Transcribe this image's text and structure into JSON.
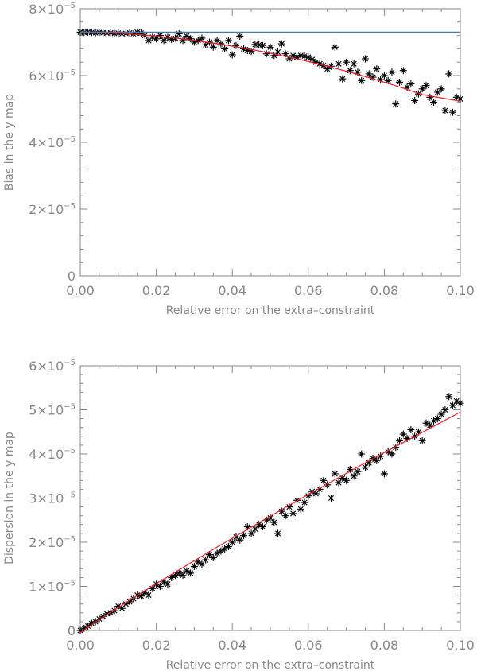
{
  "chart_data": [
    {
      "type": "scatter",
      "xlabel": "Relative error on the extra–constraint",
      "ylabel": "Bias in the y map",
      "xlim": [
        0,
        0.1
      ],
      "ylim": [
        0,
        8e-05
      ],
      "grid": false,
      "x_ticks": [
        {
          "value": 0.0,
          "label": "0.00"
        },
        {
          "value": 0.02,
          "label": "0.02"
        },
        {
          "value": 0.04,
          "label": "0.04"
        },
        {
          "value": 0.06,
          "label": "0.06"
        },
        {
          "value": 0.08,
          "label": "0.08"
        },
        {
          "value": 0.1,
          "label": "0.10"
        }
      ],
      "y_ticks": [
        {
          "value": 0,
          "mant": "0",
          "exp": ""
        },
        {
          "value": 2e-05,
          "mant": "2×10",
          "exp": "−5"
        },
        {
          "value": 4e-05,
          "mant": "4×10",
          "exp": "−5"
        },
        {
          "value": 6e-05,
          "mant": "6×10",
          "exp": "−5"
        },
        {
          "value": 8e-05,
          "mant": "8×10",
          "exp": "−5"
        }
      ],
      "series": [
        {
          "marker": "asterisk",
          "color": "#000000",
          "x": [
            0.0,
            0.001,
            0.002,
            0.003,
            0.004,
            0.005,
            0.006,
            0.007,
            0.008,
            0.009,
            0.01,
            0.011,
            0.012,
            0.013,
            0.014,
            0.015,
            0.016,
            0.017,
            0.018,
            0.019,
            0.02,
            0.021,
            0.022,
            0.023,
            0.024,
            0.025,
            0.026,
            0.027,
            0.028,
            0.029,
            0.03,
            0.031,
            0.032,
            0.033,
            0.034,
            0.035,
            0.036,
            0.037,
            0.038,
            0.039,
            0.04,
            0.041,
            0.042,
            0.043,
            0.044,
            0.045,
            0.046,
            0.047,
            0.048,
            0.049,
            0.05,
            0.051,
            0.052,
            0.053,
            0.054,
            0.055,
            0.056,
            0.057,
            0.058,
            0.059,
            0.06,
            0.061,
            0.062,
            0.063,
            0.064,
            0.065,
            0.066,
            0.067,
            0.068,
            0.069,
            0.07,
            0.071,
            0.072,
            0.073,
            0.074,
            0.075,
            0.076,
            0.077,
            0.078,
            0.079,
            0.08,
            0.081,
            0.082,
            0.083,
            0.084,
            0.085,
            0.086,
            0.087,
            0.088,
            0.089,
            0.09,
            0.091,
            0.092,
            0.093,
            0.094,
            0.095,
            0.096,
            0.097,
            0.098,
            0.099,
            0.1
          ],
          "y": [
            7.3e-05,
            7.29e-05,
            7.3e-05,
            7.29e-05,
            7.28e-05,
            7.29e-05,
            7.28e-05,
            7.27e-05,
            7.28e-05,
            7.26e-05,
            7.27e-05,
            7.25e-05,
            7.26e-05,
            7.28e-05,
            7.25e-05,
            7.3e-05,
            7.27e-05,
            7.2e-05,
            7.05e-05,
            7.15e-05,
            7.1e-05,
            7.2e-05,
            7.05e-05,
            7.15e-05,
            7.08e-05,
            7.12e-05,
            7.25e-05,
            7.05e-05,
            7.18e-05,
            7.1e-05,
            7e-05,
            7.05e-05,
            7.12e-05,
            6.92e-05,
            7e-05,
            6.85e-05,
            7.05e-05,
            6.95e-05,
            6.8e-05,
            7.05e-05,
            6.62e-05,
            6.9e-05,
            7.18e-05,
            6.8e-05,
            6.75e-05,
            6.72e-05,
            6.93e-05,
            6.92e-05,
            6.9e-05,
            6.65e-05,
            6.85e-05,
            6.6e-05,
            6.7e-05,
            6.95e-05,
            6.65e-05,
            6.5e-05,
            6.6e-05,
            6.55e-05,
            6.6e-05,
            6.58e-05,
            6.55e-05,
            6.48e-05,
            6.4e-05,
            6.35e-05,
            6.3e-05,
            6.2e-05,
            6.28e-05,
            6.85e-05,
            6.35e-05,
            5.9e-05,
            6.4e-05,
            6.15e-05,
            6.35e-05,
            6.1e-05,
            5.85e-05,
            6.5e-05,
            6.05e-05,
            5.95e-05,
            6.2e-05,
            5.88e-05,
            6e-05,
            5.85e-05,
            6.1e-05,
            5.15e-05,
            5.8e-05,
            6.15e-05,
            5.65e-05,
            5.75e-05,
            5.25e-05,
            5.45e-05,
            5.6e-05,
            5.7e-05,
            5.35e-05,
            5.2e-05,
            5.5e-05,
            5.6e-05,
            4.95e-05,
            6.05e-05,
            4.9e-05,
            5.35e-05,
            5.3e-05
          ]
        },
        {
          "marker": "line",
          "color": "#e8202a",
          "x": [
            0.0,
            0.005,
            0.01,
            0.015,
            0.02,
            0.025,
            0.03,
            0.035,
            0.04,
            0.045,
            0.05,
            0.055,
            0.06,
            0.065,
            0.07,
            0.075,
            0.08,
            0.085,
            0.09,
            0.095,
            0.1
          ],
          "y": [
            7.3e-05,
            7.29e-05,
            7.27e-05,
            7.23e-05,
            7.18e-05,
            7.12e-05,
            7.05e-05,
            6.97e-05,
            6.88e-05,
            6.78e-05,
            6.67e-05,
            6.55e-05,
            6.42e-05,
            6.28e-05,
            6.13e-05,
            5.97e-05,
            5.8e-05,
            5.62e-05,
            5.43e-05,
            5.33e-05,
            5.23e-05
          ]
        },
        {
          "marker": "hline",
          "color": "#3a7dbf",
          "x": [
            0,
            0.1
          ],
          "y": [
            7.3e-05,
            7.3e-05
          ]
        }
      ]
    },
    {
      "type": "scatter",
      "xlabel": "Relative error on the extra–constraint",
      "ylabel": "Dispersion in the y map",
      "xlim": [
        0,
        0.1
      ],
      "ylim": [
        0,
        6e-05
      ],
      "grid": false,
      "x_ticks": [
        {
          "value": 0.0,
          "label": "0.00"
        },
        {
          "value": 0.02,
          "label": "0.02"
        },
        {
          "value": 0.04,
          "label": "0.04"
        },
        {
          "value": 0.06,
          "label": "0.06"
        },
        {
          "value": 0.08,
          "label": "0.08"
        },
        {
          "value": 0.1,
          "label": "0.10"
        }
      ],
      "y_ticks": [
        {
          "value": 0,
          "mant": "0",
          "exp": ""
        },
        {
          "value": 1e-05,
          "mant": "1×10",
          "exp": "−5"
        },
        {
          "value": 2e-05,
          "mant": "2×10",
          "exp": "−5"
        },
        {
          "value": 3e-05,
          "mant": "3×10",
          "exp": "−5"
        },
        {
          "value": 4e-05,
          "mant": "4×10",
          "exp": "−5"
        },
        {
          "value": 5e-05,
          "mant": "5×10",
          "exp": "−5"
        },
        {
          "value": 6e-05,
          "mant": "6×10",
          "exp": "−5"
        }
      ],
      "series": [
        {
          "marker": "asterisk",
          "color": "#000000",
          "x": [
            0.0,
            0.001,
            0.002,
            0.003,
            0.004,
            0.005,
            0.006,
            0.007,
            0.008,
            0.009,
            0.01,
            0.011,
            0.012,
            0.013,
            0.014,
            0.015,
            0.016,
            0.017,
            0.018,
            0.019,
            0.02,
            0.021,
            0.022,
            0.023,
            0.024,
            0.025,
            0.026,
            0.027,
            0.028,
            0.029,
            0.03,
            0.031,
            0.032,
            0.033,
            0.034,
            0.035,
            0.036,
            0.037,
            0.038,
            0.039,
            0.04,
            0.041,
            0.042,
            0.043,
            0.044,
            0.045,
            0.046,
            0.047,
            0.048,
            0.049,
            0.05,
            0.051,
            0.052,
            0.053,
            0.054,
            0.055,
            0.056,
            0.057,
            0.058,
            0.059,
            0.06,
            0.061,
            0.062,
            0.063,
            0.064,
            0.065,
            0.066,
            0.067,
            0.068,
            0.069,
            0.07,
            0.071,
            0.072,
            0.073,
            0.074,
            0.075,
            0.076,
            0.077,
            0.078,
            0.079,
            0.08,
            0.081,
            0.082,
            0.083,
            0.084,
            0.085,
            0.086,
            0.087,
            0.088,
            0.089,
            0.09,
            0.091,
            0.092,
            0.093,
            0.094,
            0.095,
            0.096,
            0.097,
            0.098,
            0.099,
            0.1
          ],
          "y": [
            0.0,
            5e-07,
            1e-06,
            1.6e-06,
            2e-06,
            2.6e-06,
            3.2e-06,
            3.8e-06,
            4e-06,
            4.5e-06,
            5.5e-06,
            5e-06,
            6e-06,
            6.5e-06,
            7.2e-06,
            8e-06,
            7.8e-06,
            8.5e-06,
            8e-06,
            9.5e-06,
            1.05e-05,
            1e-05,
            1.1e-05,
            1.05e-05,
            1.2e-05,
            1.25e-05,
            1.3e-05,
            1.25e-05,
            1.35e-05,
            1.3e-05,
            1.45e-05,
            1.55e-05,
            1.5e-05,
            1.6e-05,
            1.72e-05,
            1.65e-05,
            1.75e-05,
            1.8e-05,
            1.85e-05,
            1.9e-05,
            2e-05,
            2.12e-05,
            2.05e-05,
            2.15e-05,
            2.35e-05,
            2.2e-05,
            2.3e-05,
            2.4e-05,
            2.35e-05,
            2.5e-05,
            2.55e-05,
            2.45e-05,
            2.2e-05,
            2.7e-05,
            2.6e-05,
            2.8e-05,
            2.65e-05,
            2.95e-05,
            2.75e-05,
            2.9e-05,
            3.05e-05,
            3.15e-05,
            3.1e-05,
            3.2e-05,
            3.4e-05,
            3.3e-05,
            3e-05,
            3.55e-05,
            3.35e-05,
            3.45e-05,
            3.4e-05,
            3.65e-05,
            3.5e-05,
            3.6e-05,
            4e-05,
            3.7e-05,
            3.8e-05,
            3.9e-05,
            3.85e-05,
            3.95e-05,
            3.55e-05,
            4.05e-05,
            4e-05,
            4.15e-05,
            4.3e-05,
            4.45e-05,
            4.35e-05,
            4.55e-05,
            4.4e-05,
            4.5e-05,
            4.3e-05,
            4.7e-05,
            4.65e-05,
            4.75e-05,
            4.8e-05,
            4.9e-05,
            5e-05,
            5.3e-05,
            5.1e-05,
            5.2e-05,
            5.15e-05
          ]
        },
        {
          "marker": "line",
          "color": "#e8202a",
          "x": [
            0.0,
            0.005,
            0.01,
            0.015,
            0.02,
            0.025,
            0.03,
            0.035,
            0.04,
            0.045,
            0.05,
            0.055,
            0.06,
            0.065,
            0.07,
            0.075,
            0.08,
            0.085,
            0.09,
            0.095,
            0.1
          ],
          "y": [
            -5e-07,
            2.5e-06,
            5.2e-06,
            7.9e-06,
            1.06e-05,
            1.32e-05,
            1.58e-05,
            1.84e-05,
            2.09e-05,
            2.34e-05,
            2.59e-05,
            2.84e-05,
            3.08e-05,
            3.32e-05,
            3.56e-05,
            3.8e-05,
            4.03e-05,
            4.26e-05,
            4.49e-05,
            4.72e-05,
            4.95e-05
          ]
        }
      ]
    }
  ]
}
